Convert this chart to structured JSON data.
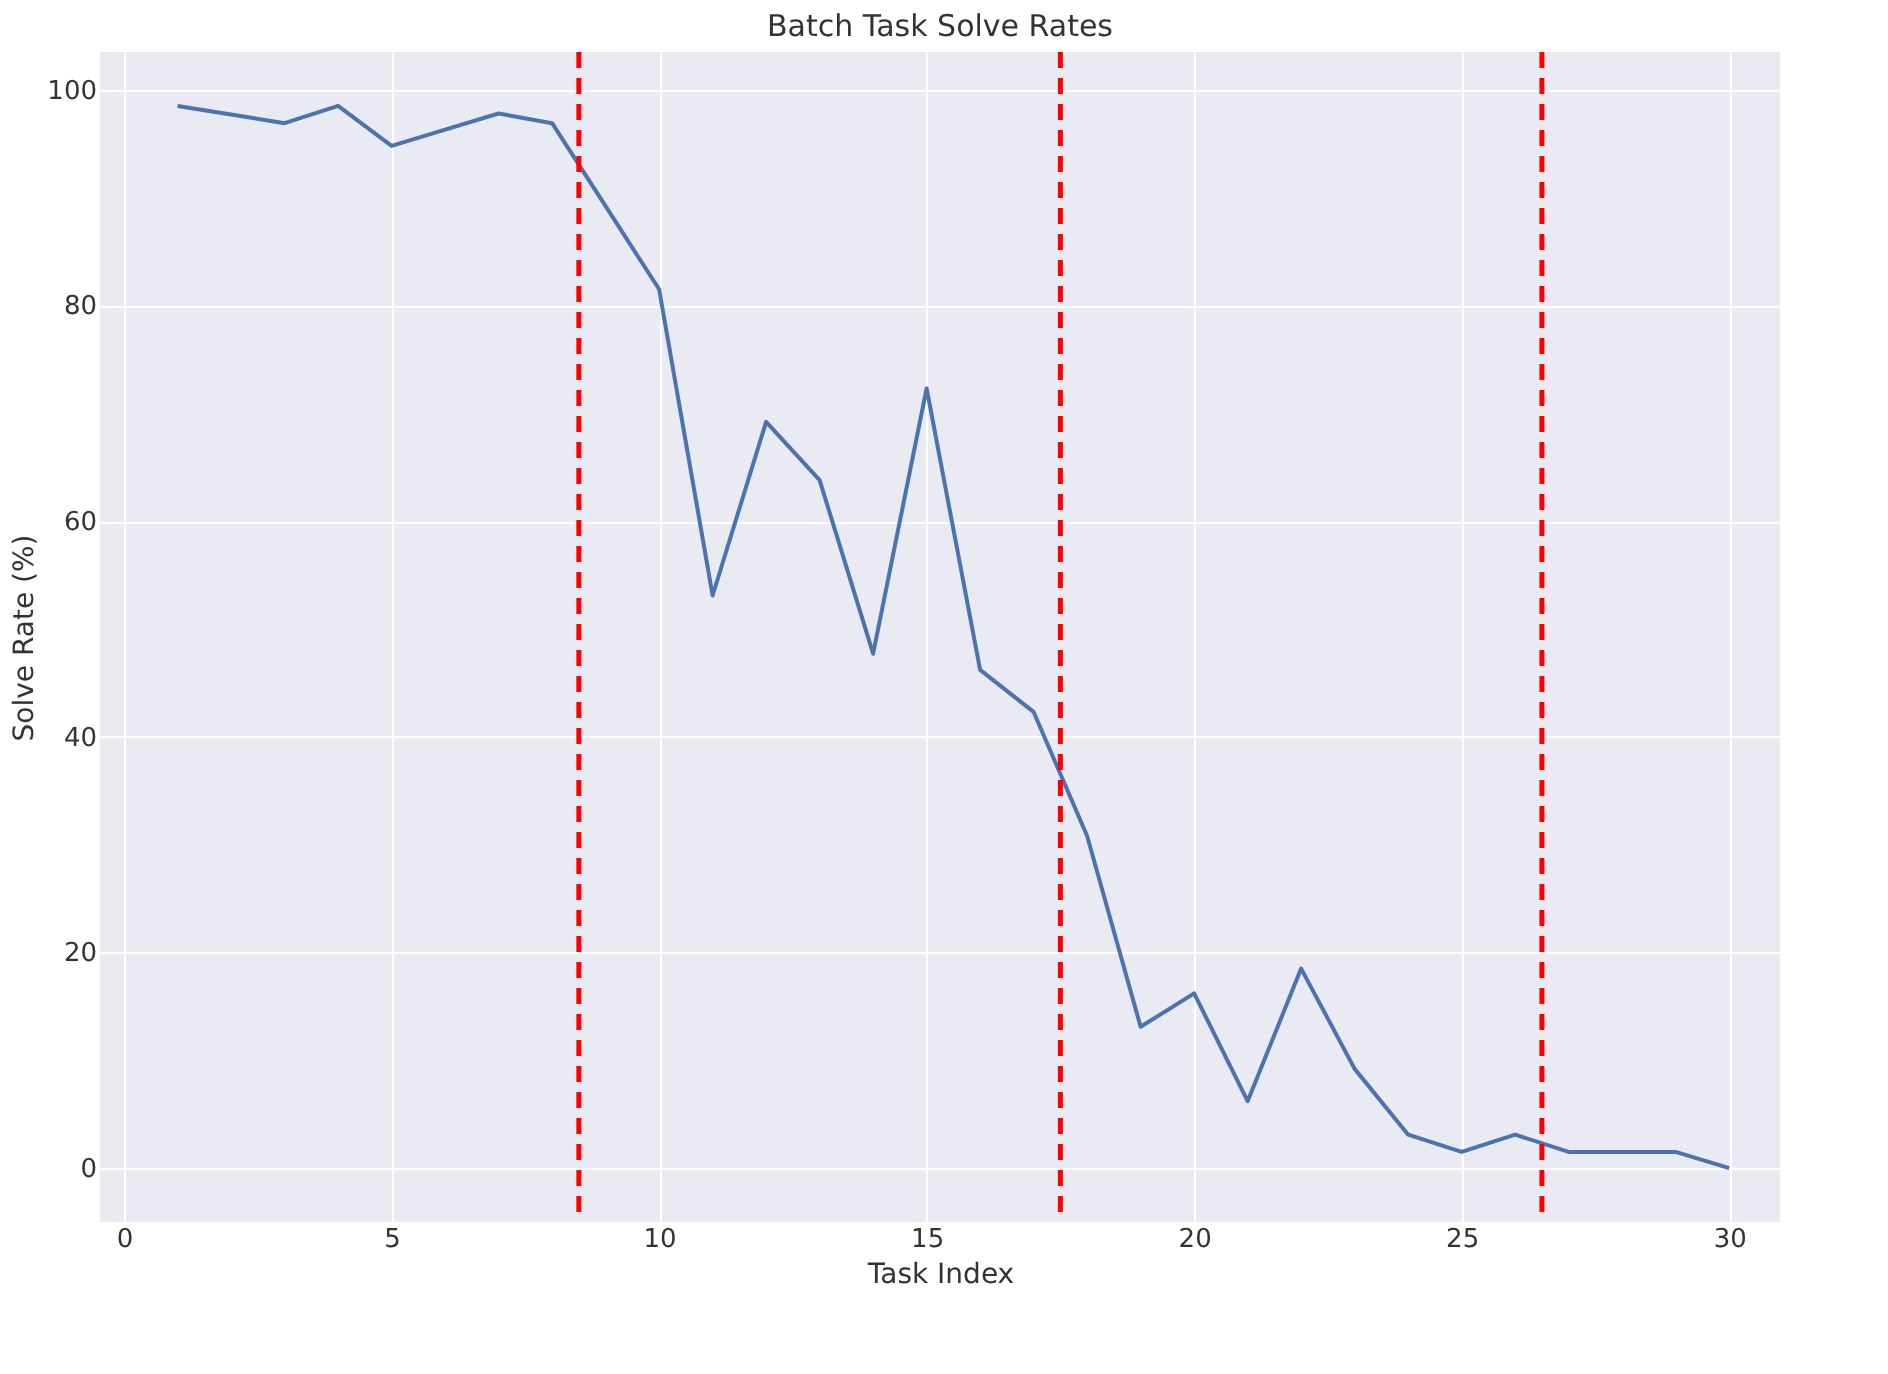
{
  "chart_data": {
    "type": "line",
    "title": "Batch Task Solve Rates",
    "xlabel": "Task Index",
    "ylabel": "Solve Rate (%)",
    "x": [
      1,
      2,
      3,
      4,
      5,
      6,
      7,
      8,
      9,
      10,
      11,
      12,
      13,
      14,
      15,
      16,
      17,
      18,
      19,
      20,
      21,
      22,
      23,
      24,
      25,
      26,
      27,
      28,
      29,
      30
    ],
    "series": [
      {
        "color": "#4c72b0",
        "values": [
          98.5,
          97.7,
          96.9,
          98.5,
          94.8,
          96.3,
          97.8,
          96.9,
          89.2,
          81.5,
          53.1,
          69.2,
          63.8,
          47.7,
          72.3,
          46.2,
          42.3,
          30.8,
          13.1,
          16.2,
          6.2,
          18.5,
          9.2,
          3.1,
          1.5,
          3.1,
          1.5,
          1.5,
          1.5,
          0
        ]
      }
    ],
    "xlim": [
      -0.45,
      30.95
    ],
    "ylim": [
      -5,
      103.5
    ],
    "xticks": [
      0,
      5,
      10,
      15,
      20,
      25,
      30
    ],
    "yticks": [
      0,
      20,
      40,
      60,
      80,
      100
    ],
    "grid": true,
    "marker": "none",
    "line_style": "solid",
    "ref_lines": [
      {
        "axis": "x",
        "value": 8.5,
        "color": "#ff0000",
        "line_style": "dashed"
      },
      {
        "axis": "x",
        "value": 17.5,
        "color": "#ff0000",
        "line_style": "dashed"
      },
      {
        "axis": "x",
        "value": 26.5,
        "color": "#ff0000",
        "line_style": "dashed"
      }
    ]
  }
}
